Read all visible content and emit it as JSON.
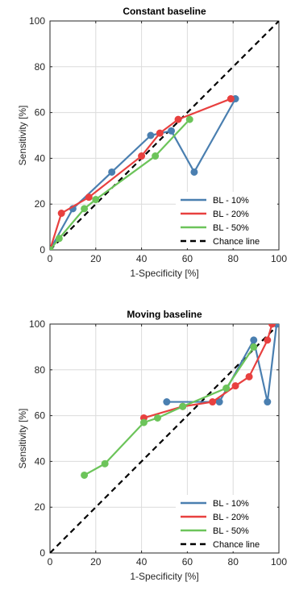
{
  "chart_data": [
    {
      "type": "line",
      "title": "Constant baseline",
      "xlabel": "1-Specificity [%]",
      "ylabel": "Sensitivity [%]",
      "xlim": [
        0,
        100
      ],
      "ylim": [
        0,
        100
      ],
      "xticks": [
        0,
        20,
        40,
        60,
        80,
        100
      ],
      "yticks": [
        0,
        20,
        40,
        60,
        80,
        100
      ],
      "grid": true,
      "legend_position": "bottom-right",
      "colors": {
        "BL - 10%": "#4a7fb0",
        "BL - 20%": "#e8403f",
        "BL - 50%": "#6cc45a",
        "Chance line": "#000000"
      },
      "series": [
        {
          "name": "BL - 10%",
          "x": [
            0,
            10,
            27,
            44,
            53,
            63,
            81
          ],
          "y": [
            0,
            18,
            34,
            50,
            52,
            34,
            66
          ]
        },
        {
          "name": "BL - 20%",
          "x": [
            0,
            5,
            17,
            40,
            48,
            56,
            79
          ],
          "y": [
            0,
            16,
            23,
            41,
            51,
            57,
            66
          ]
        },
        {
          "name": "BL - 50%",
          "x": [
            0,
            4,
            15,
            20,
            46,
            61
          ],
          "y": [
            0,
            5,
            18,
            22,
            41,
            57
          ]
        },
        {
          "name": "Chance line",
          "x": [
            0,
            100
          ],
          "y": [
            0,
            100
          ],
          "style": "dashed"
        }
      ]
    },
    {
      "type": "line",
      "title": "Moving baseline",
      "xlabel": "1-Specificity [%]",
      "ylabel": "Sensitivity [%]",
      "xlim": [
        0,
        100
      ],
      "ylim": [
        0,
        100
      ],
      "xticks": [
        0,
        20,
        40,
        60,
        80,
        100
      ],
      "yticks": [
        0,
        20,
        40,
        60,
        80,
        100
      ],
      "grid": true,
      "legend_position": "bottom-right",
      "colors": {
        "BL - 10%": "#4a7fb0",
        "BL - 20%": "#e8403f",
        "BL - 50%": "#6cc45a",
        "Chance line": "#000000"
      },
      "series": [
        {
          "name": "BL - 10%",
          "x": [
            51,
            74,
            89,
            95,
            99
          ],
          "y": [
            66,
            66,
            93,
            66,
            100
          ]
        },
        {
          "name": "BL - 20%",
          "x": [
            41,
            58,
            71,
            81,
            87,
            95,
            97
          ],
          "y": [
            59,
            64,
            66,
            73,
            77,
            93,
            100
          ]
        },
        {
          "name": "BL - 50%",
          "x": [
            15,
            24,
            41,
            47,
            58,
            77,
            89
          ],
          "y": [
            34,
            39,
            57,
            59,
            64,
            72,
            90
          ]
        },
        {
          "name": "Chance line",
          "x": [
            0,
            100
          ],
          "y": [
            0,
            100
          ],
          "style": "dashed"
        }
      ]
    }
  ]
}
